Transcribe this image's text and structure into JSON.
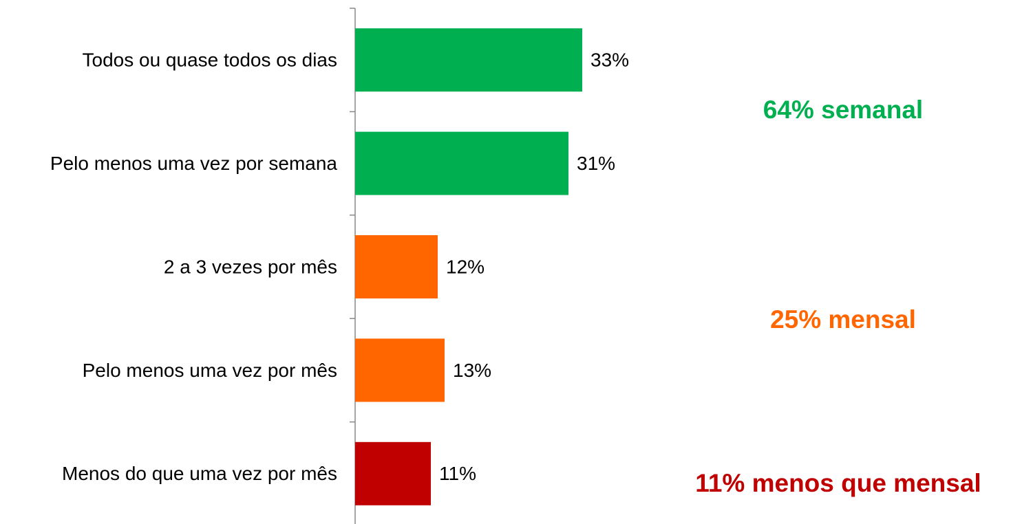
{
  "chart_data": {
    "type": "hbar",
    "categories": [
      "Todos ou quase todos os dias",
      "Pelo menos uma vez por semana",
      "2 a 3 vezes por mês",
      "Pelo menos uma vez por mês",
      "Menos do que uma vez por mês"
    ],
    "values": [
      33,
      31,
      12,
      13,
      11
    ],
    "value_labels": [
      "33%",
      "31%",
      "12%",
      "13%",
      "11%"
    ],
    "colors": [
      "#00b050",
      "#00b050",
      "#ff6600",
      "#ff6600",
      "#c00000"
    ],
    "xlim": [
      0,
      95
    ],
    "annotations": [
      {
        "text": "64% semanal",
        "color": "#00b050"
      },
      {
        "text": "25% mensal",
        "color": "#ff6600"
      },
      {
        "text": "11% menos que mensal",
        "color": "#c00000"
      }
    ]
  }
}
